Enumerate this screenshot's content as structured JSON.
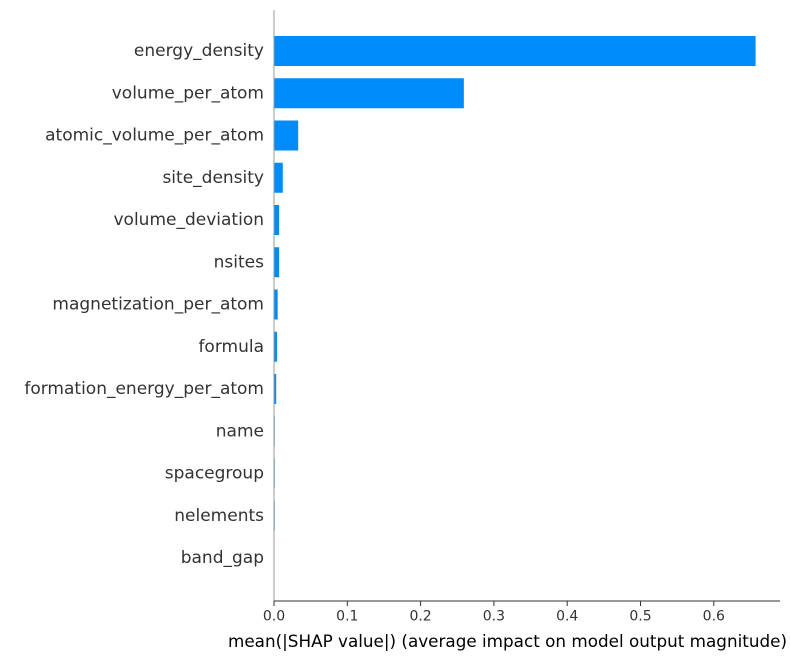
{
  "chart_data": {
    "type": "bar",
    "orientation": "horizontal",
    "categories": [
      "energy_density",
      "volume_per_atom",
      "atomic_volume_per_atom",
      "site_density",
      "volume_deviation",
      "nsites",
      "magnetization_per_atom",
      "formula",
      "formation_energy_per_atom",
      "name",
      "spacegroup",
      "nelements",
      "band_gap"
    ],
    "values": [
      0.657,
      0.259,
      0.033,
      0.012,
      0.007,
      0.007,
      0.005,
      0.004,
      0.003,
      0.001,
      0.001,
      0.001,
      0.0
    ],
    "xlabel": "mean(|SHAP value|) (average impact on model output magnitude)",
    "xlim": [
      0,
      0.69
    ],
    "xticks": [
      "0.0",
      "0.1",
      "0.2",
      "0.3",
      "0.4",
      "0.5",
      "0.6"
    ],
    "tick_values": [
      0,
      0.1,
      0.2,
      0.3,
      0.4,
      0.5,
      0.6
    ],
    "grid": false,
    "colors": {
      "bar": "#008bfb",
      "axis": "#333333",
      "text": "#333333"
    }
  }
}
